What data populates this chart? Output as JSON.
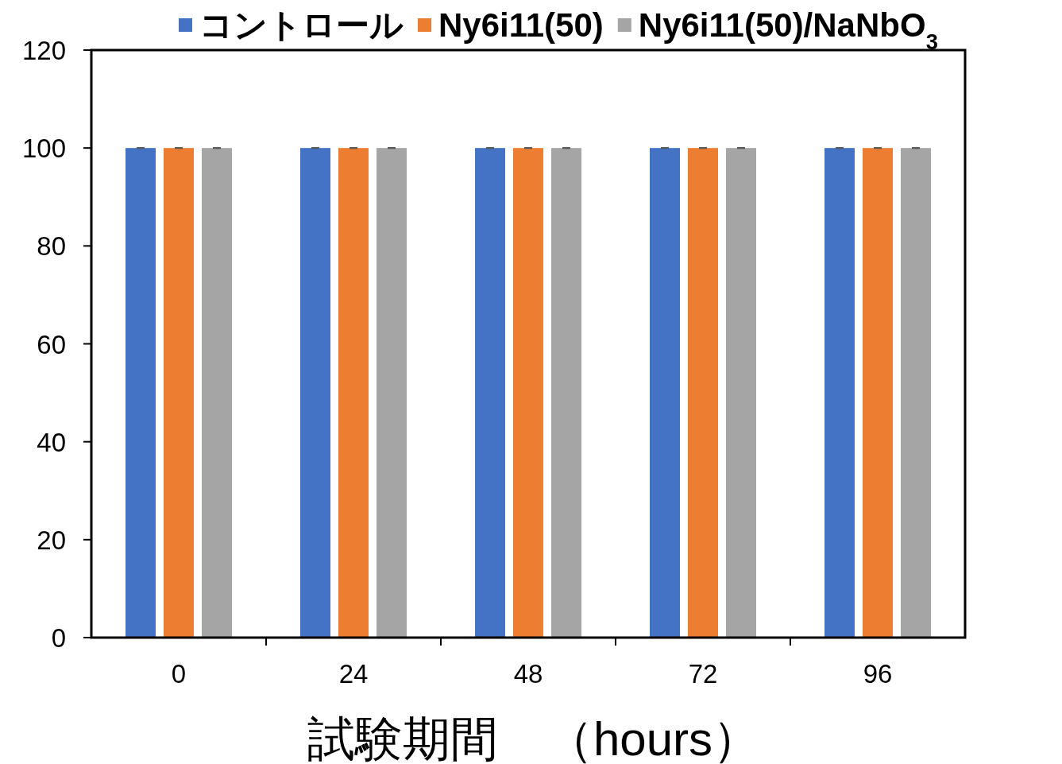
{
  "chart_data": {
    "type": "bar",
    "xlabel": "試験期間　（hours）",
    "categories": [
      "0",
      "24",
      "48",
      "72",
      "96"
    ],
    "series": [
      {
        "name": "コントロール",
        "color": "#4472c4",
        "values": [
          100,
          100,
          100,
          100,
          100
        ],
        "errors": [
          0,
          0,
          0,
          0,
          0
        ]
      },
      {
        "name": "Ny6i11(50)",
        "color": "#ed7d31",
        "values": [
          100,
          100,
          100,
          100,
          100
        ],
        "errors": [
          0,
          0,
          0,
          0,
          0
        ]
      },
      {
        "name": "Ny6i11(50)/NaNbO$_{3}$",
        "color": "#a5a5a5",
        "values": [
          100,
          100,
          100,
          100,
          100
        ],
        "errors": [
          0,
          0,
          0,
          0,
          0
        ]
      }
    ],
    "ylim": [
      0,
      120
    ],
    "yticks": [
      0,
      20,
      40,
      60,
      80,
      100,
      120
    ],
    "grid": false,
    "legend": "top"
  }
}
